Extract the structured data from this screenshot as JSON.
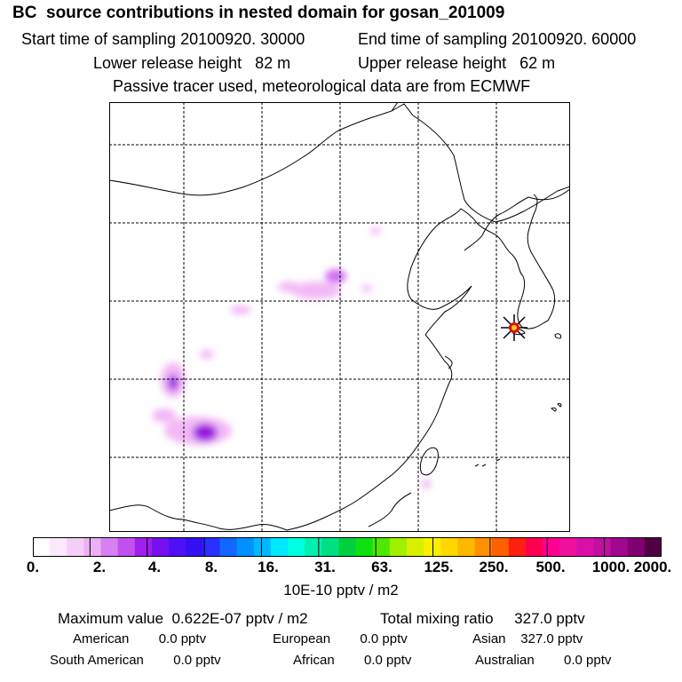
{
  "header": {
    "title": "BC  source contributions in nested domain for gosan_201009",
    "start_label": "Start time of sampling 20100920. 30000",
    "end_label": "End time of sampling 20100920. 60000",
    "lower_label": "Lower release height   82 m",
    "upper_label": "Upper release height   62 m",
    "info": "Passive tracer used, meteorological data are from ECMWF"
  },
  "colors": {
    "plume_light": "#f2b8f5",
    "plume_mid": "#d070f0",
    "plume_dark": "#9a18e0",
    "coast": "#000000",
    "grid": "#000000",
    "site_marker": "#000000"
  },
  "colorbar": {
    "colors": [
      "#ffffff",
      "#fce8fc",
      "#f5cef8",
      "#ecb0f5",
      "#d880f2",
      "#c050f0",
      "#a020ee",
      "#7410f0",
      "#5010f5",
      "#3410f5",
      "#2a30ff",
      "#1068ff",
      "#0090ff",
      "#00b8ff",
      "#00e8ff",
      "#00ffe0",
      "#00f0b0",
      "#00e080",
      "#00d040",
      "#10e010",
      "#50e800",
      "#a0f000",
      "#d8f000",
      "#f8f000",
      "#ffd800",
      "#ffb800",
      "#ff9000",
      "#ff6000",
      "#ff2010",
      "#ff0050",
      "#ff0090",
      "#f010a0",
      "#d810a8",
      "#c010a0",
      "#a00890",
      "#800070",
      "#500040"
    ],
    "labels": [
      "0.",
      "2.",
      "4.",
      "8.",
      "16.",
      "31.",
      "63.",
      "125.",
      "250.",
      "500.",
      "1000.",
      "2000."
    ],
    "units": "10E-10 pptv / m2"
  },
  "stats": {
    "maximum": "Maximum value  0.622E-07 pptv / m2",
    "total": "Total mixing ratio     327.0 pptv",
    "american": "American        0.0 pptv",
    "european": "European        0.0 pptv",
    "asian": "Asian    327.0 pptv",
    "south_american": "South American        0.0 pptv",
    "african": "African        0.0 pptv",
    "australian": "Australian        0.0 pptv"
  }
}
